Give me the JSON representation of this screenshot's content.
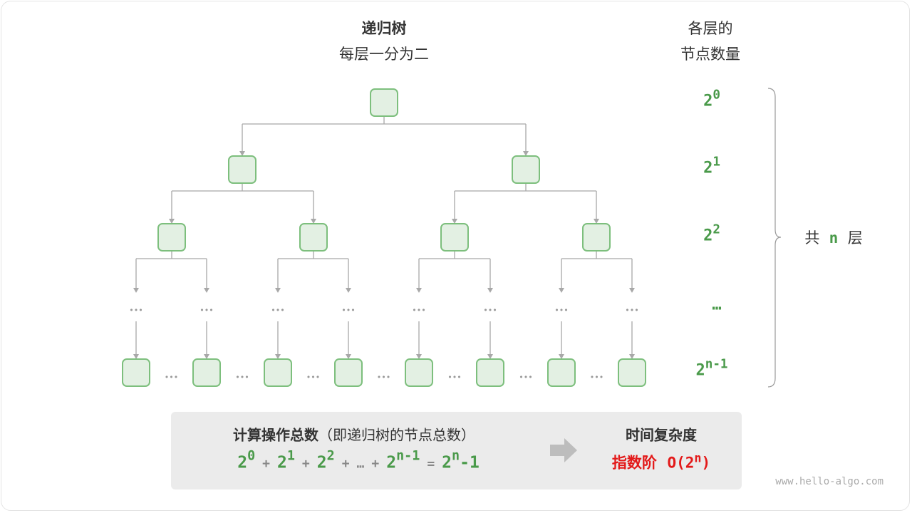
{
  "header": {
    "title": "递归树",
    "subtitle": "每层一分为二"
  },
  "right_header": {
    "line1": "各层的",
    "line2": "节点数量"
  },
  "levels": [
    {
      "base": "2",
      "exp": "0"
    },
    {
      "base": "2",
      "exp": "1"
    },
    {
      "base": "2",
      "exp": "2"
    },
    {
      "base": "…",
      "exp": ""
    },
    {
      "base": "2",
      "exp": "n-1"
    }
  ],
  "total_layers": {
    "prefix": "共",
    "n": "n",
    "suffix": "层"
  },
  "summary": {
    "title_bold": "计算操作总数",
    "title_paren": "（即递归树的节点总数）",
    "formula": {
      "t0": {
        "base": "2",
        "exp": "0"
      },
      "t1": {
        "base": "2",
        "exp": "1"
      },
      "t2": {
        "base": "2",
        "exp": "2"
      },
      "dots": "…",
      "t3": {
        "base": "2",
        "exp": "n-1"
      },
      "plus": "+",
      "equals": "=",
      "result": {
        "base": "2",
        "exp": "n",
        "tail": "-1"
      }
    },
    "complexity_title": "时间复杂度",
    "complexity_name": "指数阶",
    "complexity_value": {
      "pre": "O(2",
      "exp": "n",
      "post": ")"
    }
  },
  "ellipsis": "•••",
  "watermark": "www.hello-algo.com",
  "colors": {
    "node_fill": "#e3f0e3",
    "node_stroke": "#7dbf7d",
    "edge": "#a8a8a8",
    "accent_green": "#4a9a4a",
    "accent_red": "#e31a1a"
  }
}
